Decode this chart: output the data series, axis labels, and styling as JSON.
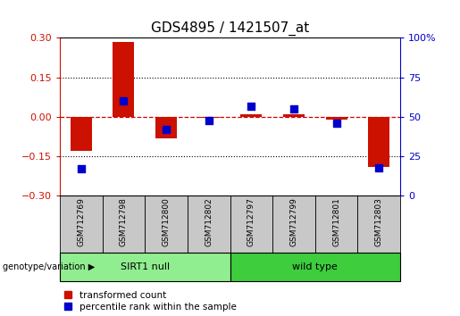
{
  "title": "GDS4895 / 1421507_at",
  "samples": [
    "GSM712769",
    "GSM712798",
    "GSM712800",
    "GSM712802",
    "GSM712797",
    "GSM712799",
    "GSM712801",
    "GSM712803"
  ],
  "transformed_count": [
    -0.13,
    0.285,
    -0.08,
    -0.005,
    0.01,
    0.01,
    -0.01,
    -0.19
  ],
  "percentile_rank": [
    17,
    60,
    42,
    48,
    57,
    55,
    46,
    18
  ],
  "groups": [
    {
      "label": "SIRT1 null",
      "indices": [
        0,
        1,
        2,
        3
      ],
      "color": "#90EE90"
    },
    {
      "label": "wild type",
      "indices": [
        4,
        5,
        6,
        7
      ],
      "color": "#3DCD3D"
    }
  ],
  "ylim_left": [
    -0.3,
    0.3
  ],
  "ylim_right": [
    0,
    100
  ],
  "yticks_left": [
    -0.3,
    -0.15,
    0,
    0.15,
    0.3
  ],
  "yticks_right": [
    0,
    25,
    50,
    75,
    100
  ],
  "bar_color": "#CC1100",
  "dot_color": "#0000CC",
  "hline_color": "#CC0000",
  "dotline_color": "#000000",
  "sample_box_color": "#C8C8C8",
  "group_label": "genotype/variation",
  "legend_bar": "transformed count",
  "legend_dot": "percentile rank within the sample",
  "bar_width": 0.5,
  "dot_size": 40,
  "title_fontsize": 11,
  "tick_fontsize": 8,
  "sample_fontsize": 6.5,
  "group_fontsize": 8,
  "legend_fontsize": 7.5
}
